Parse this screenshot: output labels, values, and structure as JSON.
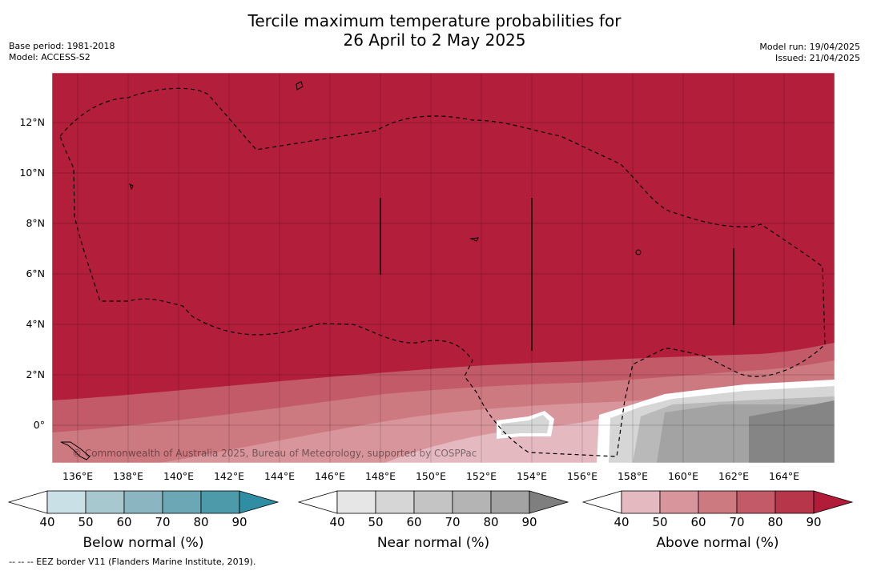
{
  "title": {
    "line1": "Tercile maximum temperature probabilities for",
    "line2": "26 April to 2 May 2025"
  },
  "meta_left": {
    "base_period": "Base period: 1981-2018",
    "model": "Model: ACCESS-S2"
  },
  "meta_right": {
    "model_run": "Model run: 19/04/2025",
    "issued": "Issued: 21/04/2025"
  },
  "map": {
    "background_color": "#b31e3b",
    "credit": "© Commonwealth of Australia 2025, Bureau of Meteorology, supported by COSPPac",
    "lon_labels": [
      "136°E",
      "138°E",
      "140°E",
      "142°E",
      "144°E",
      "146°E",
      "148°E",
      "150°E",
      "152°E",
      "154°E",
      "156°E",
      "158°E",
      "160°E",
      "162°E",
      "164°E"
    ],
    "lat_labels": [
      "12°N",
      "10°N",
      "8°N",
      "6°N",
      "4°N",
      "2°N",
      "0°"
    ]
  },
  "colorbars": [
    {
      "title": "Below normal (%)",
      "ticks": [
        "40",
        "50",
        "60",
        "70",
        "80",
        "90"
      ],
      "colors": [
        "#ffffff",
        "#c9e0e6",
        "#a8c8cf",
        "#8bb6c1",
        "#6ca7b6",
        "#4d9aab",
        "#2f8ea3"
      ]
    },
    {
      "title": "Near normal (%)",
      "ticks": [
        "40",
        "50",
        "60",
        "70",
        "80",
        "90"
      ],
      "colors": [
        "#ffffff",
        "#e6e6e6",
        "#d6d6d6",
        "#c4c4c4",
        "#b4b4b4",
        "#a3a3a3",
        "#7f7f7f"
      ]
    },
    {
      "title": "Above normal (%)",
      "ticks": [
        "40",
        "50",
        "60",
        "70",
        "80",
        "90"
      ],
      "colors": [
        "#ffffff",
        "#e4bac0",
        "#d8959b",
        "#cd7980",
        "#c35a68",
        "#b8364a",
        "#b11c39"
      ]
    }
  ],
  "footnote": "--  --  -- EEZ border V11 (Flanders Marine Institute, 2019)."
}
